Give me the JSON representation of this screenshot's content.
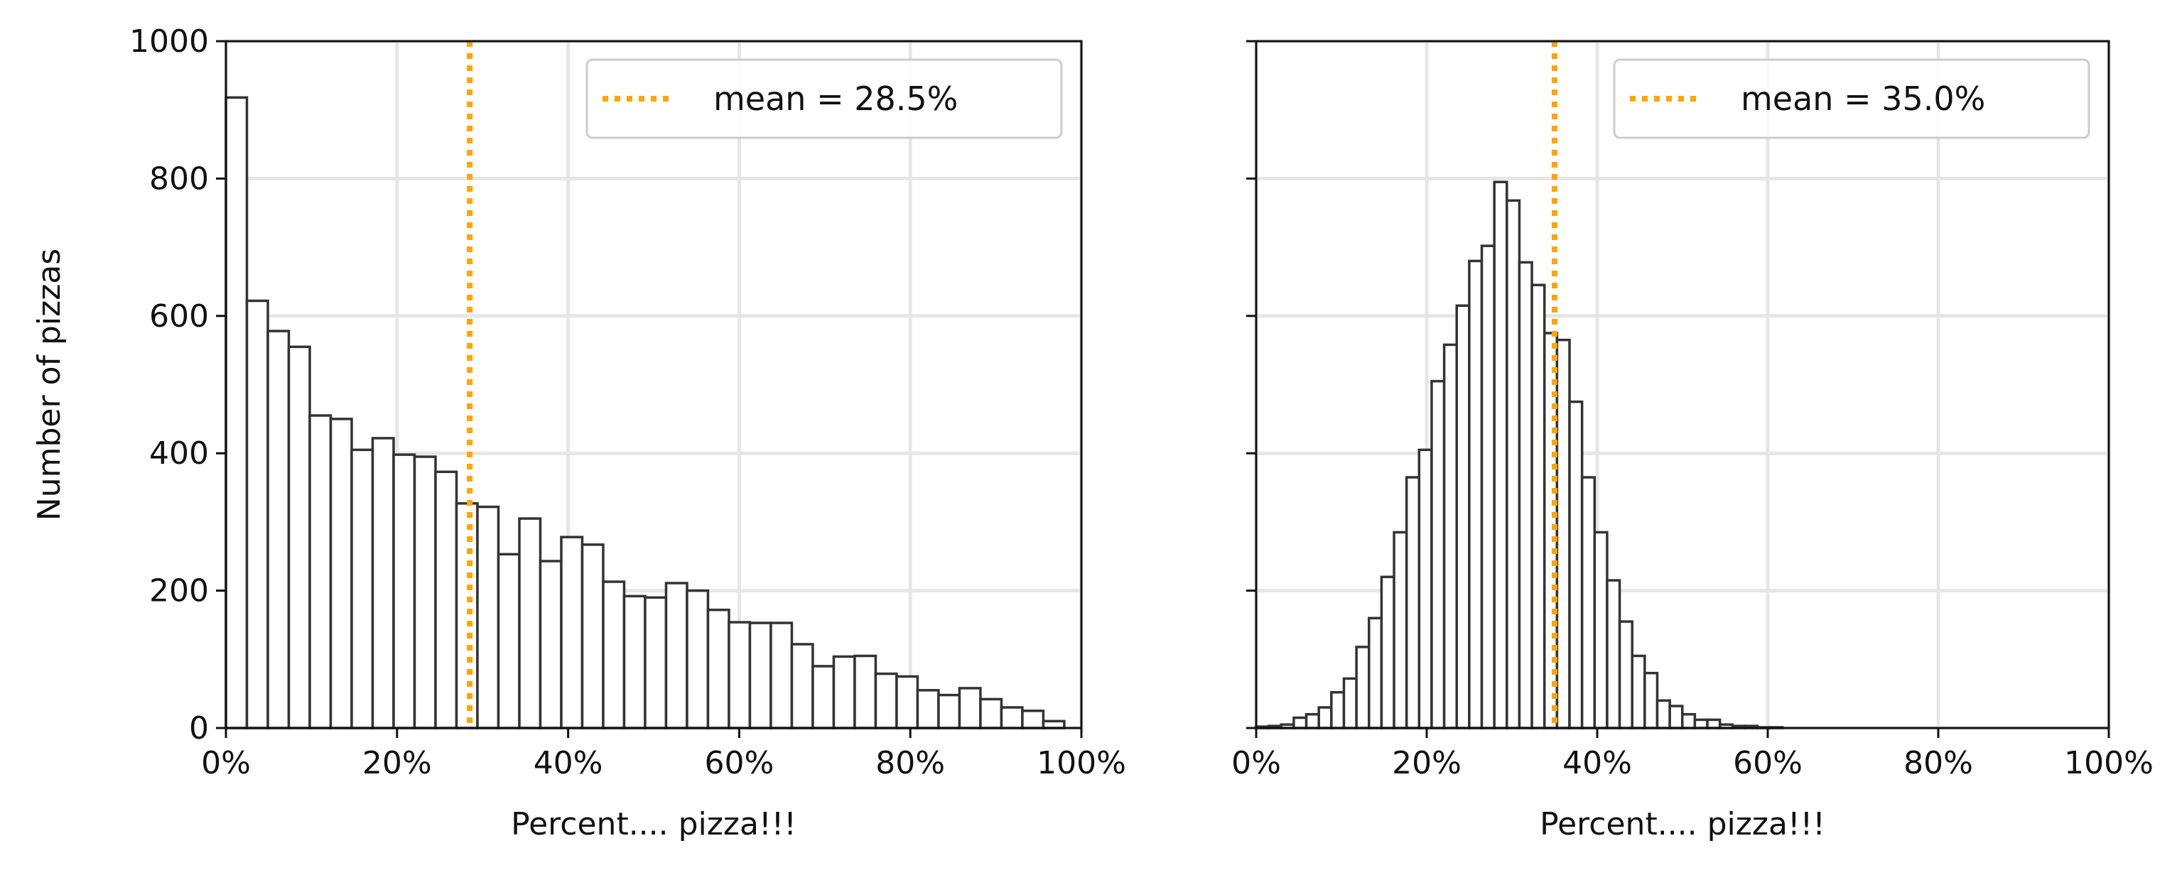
{
  "chart_data": [
    {
      "type": "histogram",
      "xlabel": "Percent.... pizza!!!",
      "ylabel": "Number of pizzas",
      "xlim": [
        0,
        1
      ],
      "ylim": [
        0,
        1000
      ],
      "xticks": [
        0,
        0.2,
        0.4,
        0.6,
        0.8,
        1.0
      ],
      "xtick_labels": [
        "0%",
        "20%",
        "40%",
        "60%",
        "80%",
        "100%"
      ],
      "yticks": [
        0,
        200,
        400,
        600,
        800,
        1000
      ],
      "ytick_labels": [
        "0",
        "200",
        "400",
        "600",
        "800",
        "1000"
      ],
      "grid": true,
      "bin_start": 0.0,
      "bin_width": 0.0245,
      "counts": [
        918,
        622,
        578,
        555,
        455,
        450,
        405,
        422,
        398,
        395,
        373,
        327,
        322,
        253,
        305,
        243,
        278,
        267,
        213,
        192,
        190,
        211,
        200,
        172,
        154,
        153,
        153,
        122,
        90,
        104,
        105,
        79,
        75,
        55,
        48,
        58,
        42,
        30,
        25,
        10
      ],
      "bar_fill": "#ffffff",
      "bar_edge": "#333333",
      "mean_line": {
        "x": 0.285,
        "color": "#ffa500",
        "style": "dotted",
        "label": "mean = 28.5%"
      },
      "legend_position": "upper right"
    },
    {
      "type": "histogram",
      "xlabel": "Percent.... pizza!!!",
      "ylabel": "",
      "xlim": [
        0,
        1
      ],
      "ylim": [
        0,
        1000
      ],
      "xticks": [
        0,
        0.2,
        0.4,
        0.6,
        0.8,
        1.0
      ],
      "xtick_labels": [
        "0%",
        "20%",
        "40%",
        "60%",
        "80%",
        "100%"
      ],
      "yticks": [
        0,
        200,
        400,
        600,
        800,
        1000
      ],
      "ytick_labels": [],
      "grid": true,
      "bin_start": 0.0,
      "bin_width": 0.0147,
      "counts": [
        2,
        3,
        5,
        15,
        20,
        30,
        52,
        72,
        118,
        160,
        220,
        285,
        365,
        405,
        505,
        558,
        615,
        680,
        702,
        795,
        768,
        678,
        645,
        575,
        565,
        475,
        365,
        285,
        215,
        155,
        105,
        80,
        40,
        32,
        20,
        12,
        12,
        5,
        3,
        3,
        1,
        1,
        0,
        0,
        0,
        0,
        0,
        0,
        0,
        0,
        0,
        0,
        0,
        0,
        0,
        0,
        0,
        0,
        0,
        0,
        0,
        0,
        0,
        0,
        0,
        0,
        0,
        0
      ],
      "bar_fill": "#ffffff",
      "bar_edge": "#333333",
      "mean_line": {
        "x": 0.35,
        "color": "#ffa500",
        "style": "dotted",
        "label": "mean = 35.0%"
      },
      "legend_position": "upper right"
    }
  ]
}
